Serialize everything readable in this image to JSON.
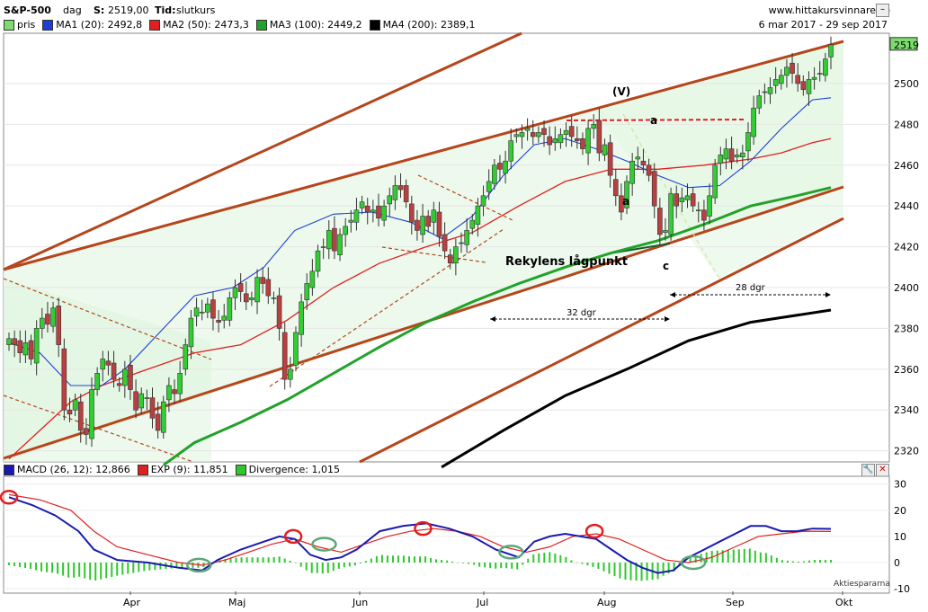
{
  "header": {
    "symbol": "S&P-500",
    "period": "dag",
    "last_label": "S:",
    "last_value": "2519,00",
    "time_label": "Tid:",
    "time_value": "slutkurs",
    "site": "www.hittakursvinnare.se",
    "date_range": "6 mar 2017 - 29 sep 2017"
  },
  "legend_price": [
    {
      "label": "pris",
      "color": "#7ddc6f"
    },
    {
      "label": "MA1 (20): 2492,8",
      "color": "#1f3fd4"
    },
    {
      "label": "MA2 (50): 2473,3",
      "color": "#e02020"
    },
    {
      "label": "MA3 (100): 2449,2",
      "color": "#22a22a"
    },
    {
      "label": "MA4 (200): 2389,1",
      "color": "#000000"
    }
  ],
  "legend_macd": [
    {
      "label": "MACD (26, 12): 12,866",
      "color": "#1a1ab0"
    },
    {
      "label": "EXP (9): 11,851",
      "color": "#e02020"
    },
    {
      "label": "Divergence: 1,015",
      "color": "#2ec82e"
    }
  ],
  "last_price_tag": "2519",
  "annotations": {
    "wave_v": "(V)",
    "wave_a_top": "a",
    "wave_a_low": "a",
    "wave_c": "c",
    "low_label": "Rekylens lågpunkt",
    "span1": "32 dgr",
    "span2": "28 dgr",
    "credit": "Aktiespararna"
  },
  "colors": {
    "up": "#33cc33",
    "down": "#b84040",
    "channel": "#b5461c",
    "ma1": "#1f3fd4",
    "ma2": "#e02020",
    "ma3": "#22a22a",
    "ma4": "#000000"
  },
  "chart_data": [
    {
      "type": "candlestick",
      "y_axis": {
        "ticks": [
          2320,
          2340,
          2360,
          2380,
          2400,
          2420,
          2440,
          2460,
          2480,
          2500,
          2519
        ],
        "ylim": [
          2310,
          2525
        ]
      },
      "x_labels": [
        "Apr",
        "Maj",
        "Jun",
        "Jul",
        "Aug",
        "Sep",
        "Okt"
      ],
      "close_series": [
        2375,
        2372,
        2368,
        2373,
        2365,
        2380,
        2385,
        2382,
        2390,
        2372,
        2340,
        2338,
        2345,
        2330,
        2328,
        2350,
        2358,
        2365,
        2362,
        2355,
        2352,
        2360,
        2350,
        2340,
        2348,
        2346,
        2336,
        2330,
        2344,
        2352,
        2348,
        2358,
        2372,
        2385,
        2390,
        2388,
        2392,
        2385,
        2383,
        2386,
        2395,
        2400,
        2398,
        2393,
        2395,
        2405,
        2402,
        2396,
        2395,
        2380,
        2355,
        2360,
        2378,
        2393,
        2402,
        2408,
        2418,
        2420,
        2428,
        2418,
        2426,
        2430,
        2433,
        2438,
        2442,
        2437,
        2438,
        2434,
        2440,
        2445,
        2450,
        2448,
        2442,
        2432,
        2428,
        2435,
        2430,
        2438,
        2425,
        2418,
        2412,
        2420,
        2422,
        2428,
        2433,
        2440,
        2445,
        2452,
        2460,
        2458,
        2462,
        2472,
        2475,
        2476,
        2478,
        2474,
        2476,
        2475,
        2470,
        2473,
        2475,
        2477,
        2474,
        2472,
        2468,
        2478,
        2480,
        2466,
        2470,
        2455,
        2445,
        2437,
        2452,
        2462,
        2464,
        2460,
        2455,
        2440,
        2426,
        2428,
        2446,
        2440,
        2444,
        2445,
        2440,
        2438,
        2433,
        2445,
        2460,
        2465,
        2468,
        2462,
        2465,
        2466,
        2476,
        2488,
        2494,
        2496,
        2498,
        2502,
        2504,
        2508,
        2505,
        2500,
        2497,
        2502,
        2503,
        2505,
        2512,
        2519
      ],
      "ma1": [
        [
          0,
          2373
        ],
        [
          20,
          2368
        ],
        [
          40,
          2352
        ],
        [
          60,
          2352
        ],
        [
          75,
          2360
        ],
        [
          100,
          2380
        ],
        [
          120,
          2396
        ],
        [
          145,
          2400
        ],
        [
          165,
          2410
        ],
        [
          185,
          2428
        ],
        [
          210,
          2436
        ],
        [
          235,
          2437
        ],
        [
          260,
          2432
        ],
        [
          280,
          2424
        ],
        [
          300,
          2435
        ],
        [
          320,
          2455
        ],
        [
          340,
          2470
        ],
        [
          360,
          2473
        ],
        [
          380,
          2468
        ],
        [
          400,
          2462
        ],
        [
          420,
          2455
        ],
        [
          440,
          2449
        ],
        [
          460,
          2450
        ],
        [
          480,
          2462
        ],
        [
          500,
          2478
        ],
        [
          520,
          2492
        ],
        [
          532,
          2493
        ]
      ],
      "ma2": [
        [
          0,
          2316
        ],
        [
          20,
          2330
        ],
        [
          40,
          2344
        ],
        [
          60,
          2352
        ],
        [
          90,
          2360
        ],
        [
          120,
          2368
        ],
        [
          150,
          2372
        ],
        [
          180,
          2384
        ],
        [
          210,
          2400
        ],
        [
          240,
          2412
        ],
        [
          270,
          2420
        ],
        [
          300,
          2427
        ],
        [
          330,
          2440
        ],
        [
          360,
          2452
        ],
        [
          390,
          2458
        ],
        [
          420,
          2458
        ],
        [
          450,
          2460
        ],
        [
          480,
          2463
        ],
        [
          500,
          2466
        ],
        [
          520,
          2471
        ],
        [
          532,
          2473
        ]
      ],
      "ma3": [
        [
          100,
          2313
        ],
        [
          120,
          2324
        ],
        [
          150,
          2334
        ],
        [
          180,
          2345
        ],
        [
          210,
          2358
        ],
        [
          240,
          2371
        ],
        [
          270,
          2383
        ],
        [
          300,
          2393
        ],
        [
          330,
          2402
        ],
        [
          360,
          2410
        ],
        [
          390,
          2417
        ],
        [
          420,
          2423
        ],
        [
          450,
          2431
        ],
        [
          480,
          2440
        ],
        [
          510,
          2445
        ],
        [
          532,
          2449
        ]
      ],
      "ma4": [
        [
          280,
          2312
        ],
        [
          320,
          2330
        ],
        [
          360,
          2347
        ],
        [
          400,
          2360
        ],
        [
          440,
          2374
        ],
        [
          480,
          2383
        ],
        [
          532,
          2389
        ]
      ]
    },
    {
      "type": "macd",
      "y_axis": {
        "ticks": [
          30,
          20,
          10,
          0,
          -10
        ],
        "ylim": [
          -10,
          32
        ]
      },
      "series": [
        {
          "name": "MACD (26, 12)",
          "values": [
            [
              0,
              25
            ],
            [
              15,
              22
            ],
            [
              30,
              18
            ],
            [
              45,
              12
            ],
            [
              55,
              5
            ],
            [
              70,
              1
            ],
            [
              90,
              0
            ],
            [
              110,
              -2
            ],
            [
              125,
              -3
            ],
            [
              135,
              1
            ],
            [
              150,
              5
            ],
            [
              165,
              8
            ],
            [
              175,
              10
            ],
            [
              185,
              9
            ],
            [
              195,
              3
            ],
            [
              205,
              1
            ],
            [
              215,
              2
            ],
            [
              225,
              5
            ],
            [
              240,
              12
            ],
            [
              255,
              14
            ],
            [
              270,
              15
            ],
            [
              285,
              13
            ],
            [
              300,
              10
            ],
            [
              315,
              5
            ],
            [
              330,
              2
            ],
            [
              340,
              8
            ],
            [
              350,
              10
            ],
            [
              360,
              11
            ],
            [
              370,
              10
            ],
            [
              380,
              9
            ],
            [
              390,
              5
            ],
            [
              400,
              1
            ],
            [
              410,
              -2
            ],
            [
              420,
              -4
            ],
            [
              430,
              -3
            ],
            [
              440,
              2
            ],
            [
              450,
              5
            ],
            [
              460,
              8
            ],
            [
              470,
              11
            ],
            [
              480,
              14
            ],
            [
              490,
              14
            ],
            [
              500,
              12
            ],
            [
              510,
              12
            ],
            [
              520,
              13
            ],
            [
              532,
              12.9
            ]
          ]
        },
        {
          "name": "EXP (9)",
          "values": [
            [
              0,
              26
            ],
            [
              20,
              24
            ],
            [
              40,
              20
            ],
            [
              55,
              12
            ],
            [
              70,
              6
            ],
            [
              90,
              3
            ],
            [
              110,
              0
            ],
            [
              125,
              -1
            ],
            [
              140,
              1
            ],
            [
              155,
              4
            ],
            [
              170,
              7
            ],
            [
              185,
              9
            ],
            [
              200,
              6
            ],
            [
              215,
              4
            ],
            [
              230,
              7
            ],
            [
              245,
              10
            ],
            [
              260,
              12
            ],
            [
              275,
              13
            ],
            [
              290,
              12
            ],
            [
              305,
              10
            ],
            [
              320,
              6
            ],
            [
              335,
              4
            ],
            [
              350,
              6
            ],
            [
              365,
              10
            ],
            [
              380,
              11
            ],
            [
              395,
              9
            ],
            [
              410,
              5
            ],
            [
              425,
              1
            ],
            [
              440,
              0
            ],
            [
              455,
              2
            ],
            [
              470,
              6
            ],
            [
              485,
              10
            ],
            [
              500,
              11
            ],
            [
              515,
              12
            ],
            [
              532,
              11.9
            ]
          ]
        }
      ]
    }
  ]
}
